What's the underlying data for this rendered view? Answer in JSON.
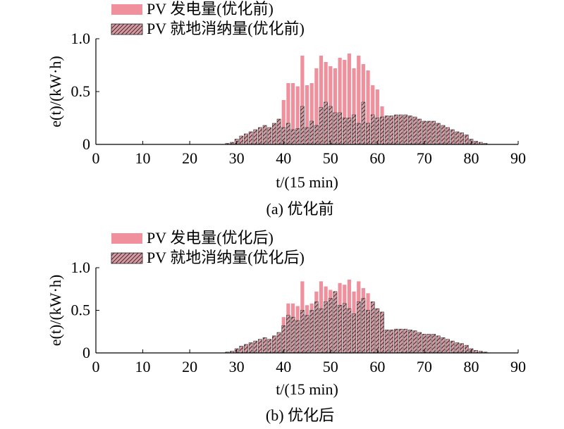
{
  "chart_data": [
    {
      "type": "bar",
      "caption": "(a) 优化前",
      "xlabel": "t/(15 min)",
      "ylabel": "e(t)/(kW·h)",
      "xlim": [
        0,
        90
      ],
      "ylim": [
        0,
        1.0
      ],
      "xticks": [
        "0",
        "10",
        "20",
        "30",
        "40",
        "50",
        "60",
        "70",
        "80",
        "90"
      ],
      "yticks": [
        "0",
        "0.5",
        "1.0"
      ],
      "grid": false,
      "legend_position": "top-left",
      "x": [
        28,
        29,
        30,
        31,
        32,
        33,
        34,
        35,
        36,
        37,
        38,
        39,
        40,
        41,
        42,
        43,
        44,
        45,
        46,
        47,
        48,
        49,
        50,
        51,
        52,
        53,
        54,
        55,
        56,
        57,
        58,
        59,
        60,
        61,
        62,
        63,
        64,
        65,
        66,
        67,
        68,
        69,
        70,
        71,
        72,
        73,
        74,
        75,
        76,
        77,
        78,
        79,
        80,
        81,
        82,
        83,
        84
      ],
      "series": [
        {
          "name": "PV 发电量(优化前)",
          "color": "#f0909c",
          "pattern": "solid",
          "values": [
            0.01,
            0.02,
            0.05,
            0.08,
            0.1,
            0.12,
            0.14,
            0.16,
            0.18,
            0.16,
            0.2,
            0.24,
            0.42,
            0.58,
            0.58,
            0.55,
            0.84,
            0.56,
            0.58,
            0.72,
            0.84,
            0.78,
            0.74,
            0.72,
            0.82,
            0.8,
            0.86,
            0.72,
            0.84,
            0.76,
            0.7,
            0.56,
            0.52,
            0.36,
            0.27,
            0.27,
            0.28,
            0.28,
            0.28,
            0.27,
            0.26,
            0.24,
            0.22,
            0.22,
            0.22,
            0.2,
            0.18,
            0.16,
            0.14,
            0.12,
            0.11,
            0.09,
            0.05,
            0.03,
            0.02,
            0.01,
            0.0
          ]
        },
        {
          "name": "PV 就地消纳量(优化前)",
          "color": "#b8848c",
          "pattern": "hatch",
          "values": [
            0.01,
            0.02,
            0.05,
            0.08,
            0.1,
            0.12,
            0.14,
            0.16,
            0.18,
            0.16,
            0.2,
            0.24,
            0.16,
            0.2,
            0.14,
            0.15,
            0.36,
            0.16,
            0.22,
            0.18,
            0.35,
            0.4,
            0.36,
            0.3,
            0.3,
            0.25,
            0.25,
            0.28,
            0.2,
            0.4,
            0.2,
            0.28,
            0.25,
            0.26,
            0.27,
            0.27,
            0.28,
            0.28,
            0.28,
            0.27,
            0.26,
            0.24,
            0.22,
            0.22,
            0.22,
            0.2,
            0.18,
            0.16,
            0.14,
            0.12,
            0.11,
            0.09,
            0.05,
            0.03,
            0.02,
            0.01,
            0.0
          ]
        }
      ]
    },
    {
      "type": "bar",
      "caption": "(b) 优化后",
      "xlabel": "t/(15 min)",
      "ylabel": "e(t)/(kW·h)",
      "xlim": [
        0,
        90
      ],
      "ylim": [
        0,
        1.0
      ],
      "xticks": [
        "0",
        "10",
        "20",
        "30",
        "40",
        "50",
        "60",
        "70",
        "80",
        "90"
      ],
      "yticks": [
        "0",
        "0.5",
        "1.0"
      ],
      "grid": false,
      "legend_position": "top-left",
      "x": [
        28,
        29,
        30,
        31,
        32,
        33,
        34,
        35,
        36,
        37,
        38,
        39,
        40,
        41,
        42,
        43,
        44,
        45,
        46,
        47,
        48,
        49,
        50,
        51,
        52,
        53,
        54,
        55,
        56,
        57,
        58,
        59,
        60,
        61,
        62,
        63,
        64,
        65,
        66,
        67,
        68,
        69,
        70,
        71,
        72,
        73,
        74,
        75,
        76,
        77,
        78,
        79,
        80,
        81,
        82,
        83,
        84
      ],
      "series": [
        {
          "name": "PV 发电量(优化后)",
          "color": "#f0909c",
          "pattern": "solid",
          "values": [
            0.01,
            0.02,
            0.05,
            0.08,
            0.1,
            0.12,
            0.14,
            0.16,
            0.18,
            0.16,
            0.2,
            0.24,
            0.42,
            0.58,
            0.58,
            0.55,
            0.84,
            0.56,
            0.58,
            0.72,
            0.84,
            0.78,
            0.74,
            0.72,
            0.82,
            0.8,
            0.86,
            0.72,
            0.84,
            0.76,
            0.7,
            0.56,
            0.52,
            0.36,
            0.27,
            0.27,
            0.28,
            0.28,
            0.28,
            0.27,
            0.26,
            0.24,
            0.22,
            0.22,
            0.22,
            0.2,
            0.18,
            0.16,
            0.14,
            0.12,
            0.11,
            0.09,
            0.05,
            0.03,
            0.02,
            0.01,
            0.0
          ]
        },
        {
          "name": "PV 就地消纳量(优化后)",
          "color": "#b8848c",
          "pattern": "hatch",
          "values": [
            0.01,
            0.02,
            0.05,
            0.08,
            0.1,
            0.12,
            0.14,
            0.16,
            0.18,
            0.16,
            0.2,
            0.24,
            0.32,
            0.44,
            0.42,
            0.38,
            0.5,
            0.44,
            0.5,
            0.6,
            0.52,
            0.6,
            0.64,
            0.72,
            0.56,
            0.58,
            0.52,
            0.46,
            0.6,
            0.64,
            0.5,
            0.6,
            0.52,
            0.48,
            0.27,
            0.27,
            0.28,
            0.28,
            0.28,
            0.27,
            0.26,
            0.24,
            0.22,
            0.22,
            0.22,
            0.2,
            0.18,
            0.16,
            0.14,
            0.12,
            0.11,
            0.09,
            0.05,
            0.03,
            0.02,
            0.01,
            0.0
          ]
        }
      ]
    }
  ]
}
